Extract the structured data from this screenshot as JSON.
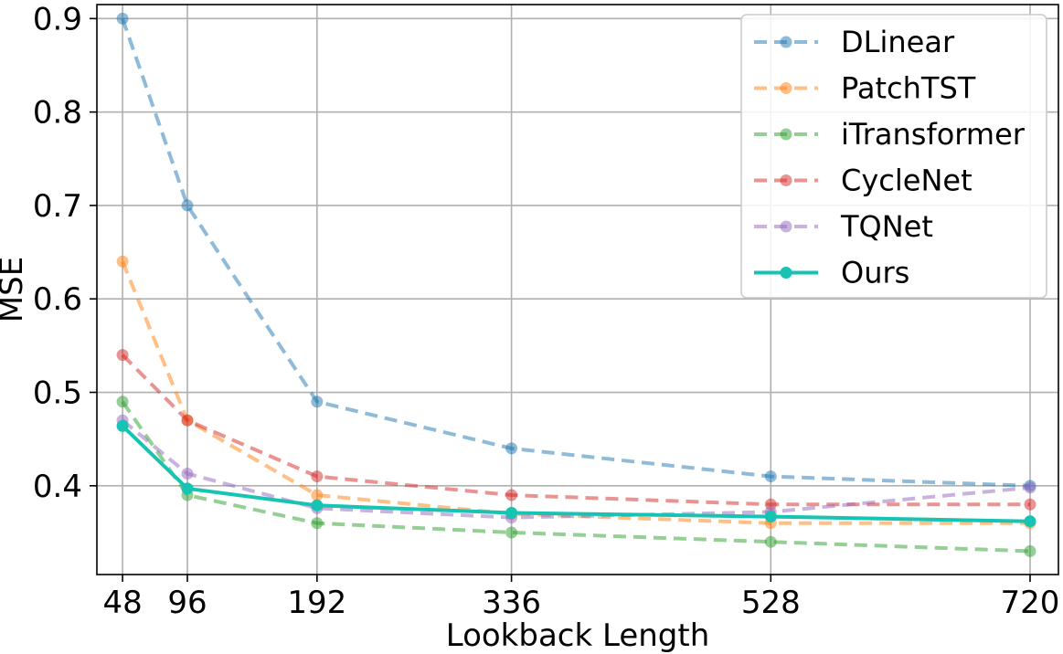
{
  "chart_data": {
    "type": "line",
    "xlabel": "Lookback Length",
    "ylabel": "MSE",
    "x": [
      48,
      96,
      192,
      336,
      528,
      720
    ],
    "x_tick_labels": [
      "48",
      "96",
      "192",
      "336",
      "528",
      "720"
    ],
    "y_ticks": [
      0.4,
      0.5,
      0.6,
      0.7,
      0.8,
      0.9
    ],
    "y_tick_labels": [
      "0.4",
      "0.5",
      "0.6",
      "0.7",
      "0.8",
      "0.9"
    ],
    "xlim": [
      29,
      741
    ],
    "ylim": [
      0.305,
      0.915
    ],
    "grid": true,
    "legend_position": "top-right",
    "series": [
      {
        "name": "DLinear",
        "color": "#1f77b4",
        "style": "dashed",
        "values": [
          0.9,
          0.7,
          0.49,
          0.44,
          0.41,
          0.4
        ]
      },
      {
        "name": "PatchTST",
        "color": "#ff7f0e",
        "style": "dashed",
        "values": [
          0.64,
          0.47,
          0.39,
          0.37,
          0.36,
          0.36
        ]
      },
      {
        "name": "iTransformer",
        "color": "#2ca02c",
        "style": "dashed",
        "values": [
          0.49,
          0.39,
          0.36,
          0.35,
          0.34,
          0.33
        ]
      },
      {
        "name": "CycleNet",
        "color": "#d62728",
        "style": "dashed",
        "values": [
          0.54,
          0.47,
          0.41,
          0.39,
          0.38,
          0.38
        ]
      },
      {
        "name": "TQNet",
        "color": "#9467bd",
        "style": "dashed",
        "values": [
          0.47,
          0.413,
          0.376,
          0.366,
          0.372,
          0.398
        ]
      },
      {
        "name": "Ours",
        "color": "#17c3b2",
        "style": "solid",
        "values": [
          0.464,
          0.397,
          0.379,
          0.371,
          0.367,
          0.362
        ]
      }
    ]
  }
}
